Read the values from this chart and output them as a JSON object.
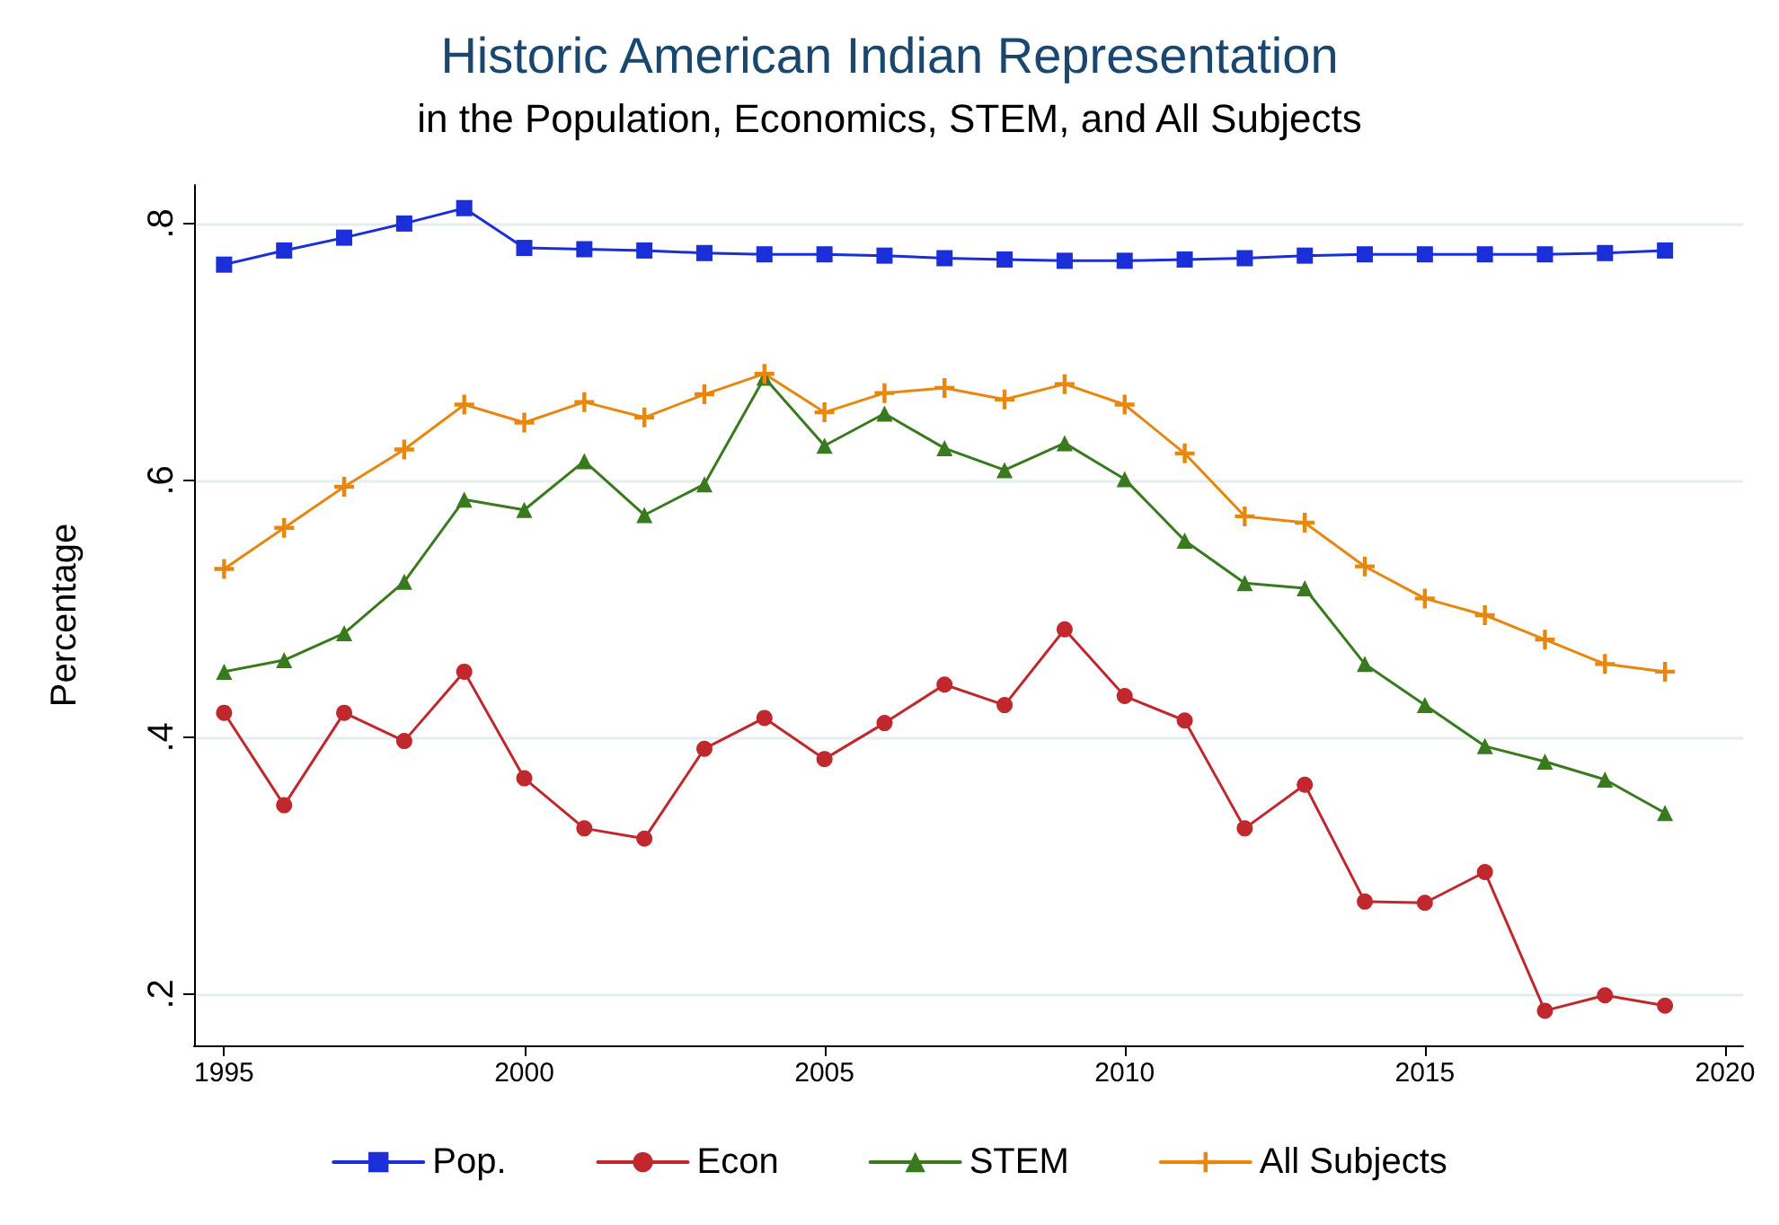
{
  "chart_data": {
    "type": "line",
    "title": "Historic American Indian Representation",
    "subtitle": "in the Population, Economics, STEM, and All Subjects",
    "ylabel": "Percentage",
    "x": [
      1995,
      1996,
      1997,
      1998,
      1999,
      2000,
      2001,
      2002,
      2003,
      2004,
      2005,
      2006,
      2007,
      2008,
      2009,
      2010,
      2011,
      2012,
      2013,
      2014,
      2015,
      2016,
      2017,
      2018,
      2019
    ],
    "series": [
      {
        "name": "Pop.",
        "color": "#1a2fd8",
        "marker": "square",
        "values": [
          0.768,
          0.779,
          0.789,
          0.8,
          0.812,
          0.781,
          0.78,
          0.779,
          0.777,
          0.776,
          0.776,
          0.775,
          0.773,
          0.772,
          0.771,
          0.771,
          0.772,
          0.773,
          0.775,
          0.776,
          0.776,
          0.776,
          0.776,
          0.777,
          0.779
        ]
      },
      {
        "name": "Econ",
        "color": "#c0282d",
        "marker": "circle",
        "values": [
          0.419,
          0.347,
          0.419,
          0.397,
          0.451,
          0.368,
          0.329,
          0.321,
          0.391,
          0.415,
          0.383,
          0.411,
          0.441,
          0.425,
          0.484,
          0.432,
          0.413,
          0.329,
          0.363,
          0.272,
          0.271,
          0.295,
          0.187,
          0.199,
          0.191
        ]
      },
      {
        "name": "STEM",
        "color": "#3a7a1f",
        "marker": "triangle",
        "values": [
          0.451,
          0.46,
          0.481,
          0.521,
          0.585,
          0.577,
          0.615,
          0.573,
          0.597,
          0.68,
          0.627,
          0.652,
          0.625,
          0.608,
          0.629,
          0.601,
          0.553,
          0.52,
          0.516,
          0.457,
          0.425,
          0.393,
          0.381,
          0.367,
          0.341
        ]
      },
      {
        "name": "All Subjects",
        "color": "#e8870e",
        "marker": "cross",
        "values": [
          0.531,
          0.563,
          0.595,
          0.624,
          0.659,
          0.645,
          0.661,
          0.649,
          0.667,
          0.683,
          0.653,
          0.668,
          0.672,
          0.663,
          0.675,
          0.659,
          0.621,
          0.572,
          0.567,
          0.533,
          0.508,
          0.495,
          0.476,
          0.457,
          0.451
        ]
      }
    ],
    "xlim": [
      1994.5,
      2020.3
    ],
    "xticks": [
      1995,
      2000,
      2005,
      2010,
      2015,
      2020
    ],
    "ylim": [
      0.16,
      0.83
    ],
    "yticks": [
      {
        "value": 0.2,
        "label": ".2"
      },
      {
        "value": 0.4,
        "label": ".4"
      },
      {
        "value": 0.6,
        "label": ".6"
      },
      {
        "value": 0.8,
        "label": ".8"
      }
    ],
    "grid": "y",
    "legend": "bottom",
    "line_style": "solid"
  }
}
